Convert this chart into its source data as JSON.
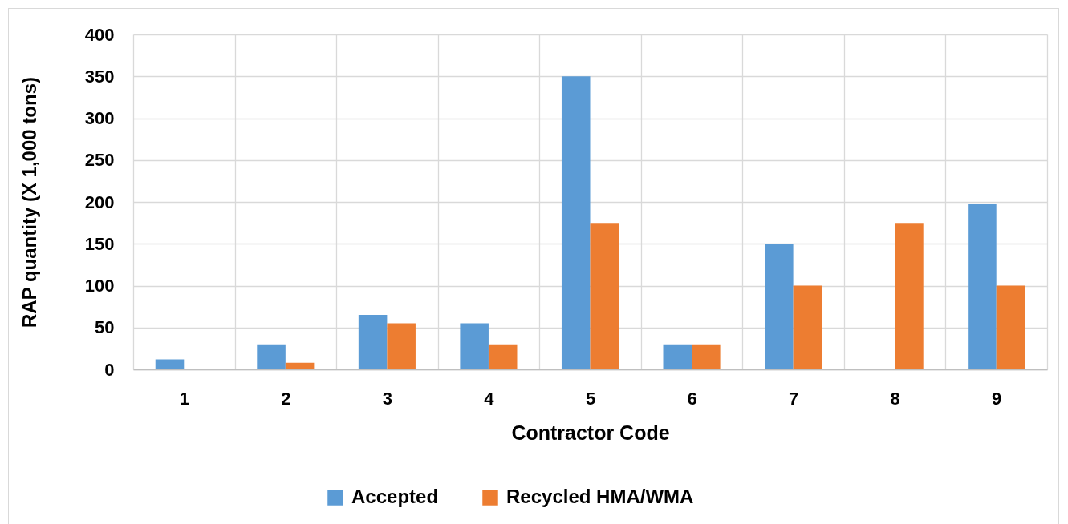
{
  "chart_data": {
    "type": "bar",
    "xlabel": "Contractor Code",
    "ylabel": "RAP quantity (X 1,000 tons)",
    "categories": [
      "1",
      "2",
      "3",
      "4",
      "5",
      "6",
      "7",
      "8",
      "9"
    ],
    "series": [
      {
        "name": "Accepted",
        "color": "#5b9bd5",
        "values": [
          12,
          30,
          65,
          55,
          350,
          30,
          150,
          null,
          198
        ]
      },
      {
        "name": "Recycled HMA/WMA",
        "color": "#ed7d31",
        "values": [
          null,
          8,
          55,
          30,
          175,
          30,
          100,
          175,
          100
        ]
      }
    ],
    "ylim": [
      0,
      400
    ],
    "yticks": [
      0,
      50,
      100,
      150,
      200,
      250,
      300,
      350,
      400
    ],
    "grid": true,
    "legend": "bottom"
  }
}
